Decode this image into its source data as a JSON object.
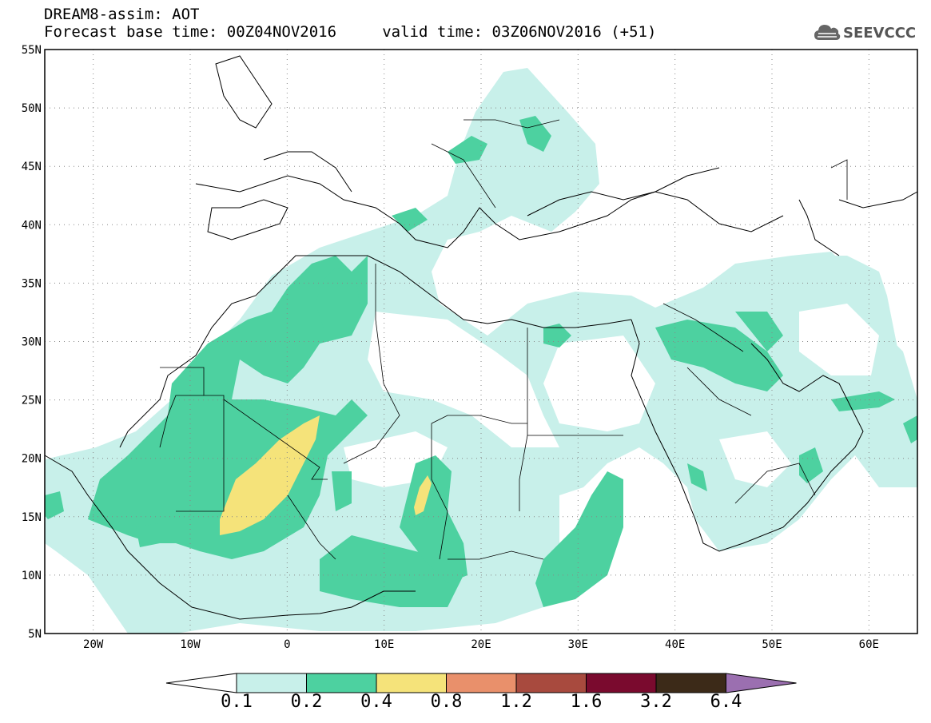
{
  "header": {
    "title_line1": "DREAM8-assim: AOT",
    "title_line2": "Forecast base time: 00Z04NOV2016     valid time: 03Z06NOV2016 (+51)",
    "logo_text": "SEEVCCC",
    "logo_icon": "cloud-icon"
  },
  "map": {
    "lon_labels": [
      "20W",
      "10W",
      "0",
      "10E",
      "20E",
      "30E",
      "40E",
      "50E",
      "60E"
    ],
    "lat_labels": [
      "55N",
      "50N",
      "45N",
      "40N",
      "35N",
      "30N",
      "25N",
      "20N",
      "15N",
      "10N",
      "5N"
    ],
    "lon_range": [
      -25,
      65
    ],
    "lat_range": [
      5,
      55
    ]
  },
  "colorbar": {
    "labels": [
      "0.1",
      "0.2",
      "0.4",
      "0.8",
      "1.2",
      "1.6",
      "3.2",
      "6.4"
    ],
    "colors": [
      "#ffffff",
      "#c8f0ea",
      "#4dd1a0",
      "#f5e37a",
      "#e9906b",
      "#a84a3e",
      "#7a0a2e",
      "#3c2a18",
      "#9b6fb0"
    ]
  }
}
